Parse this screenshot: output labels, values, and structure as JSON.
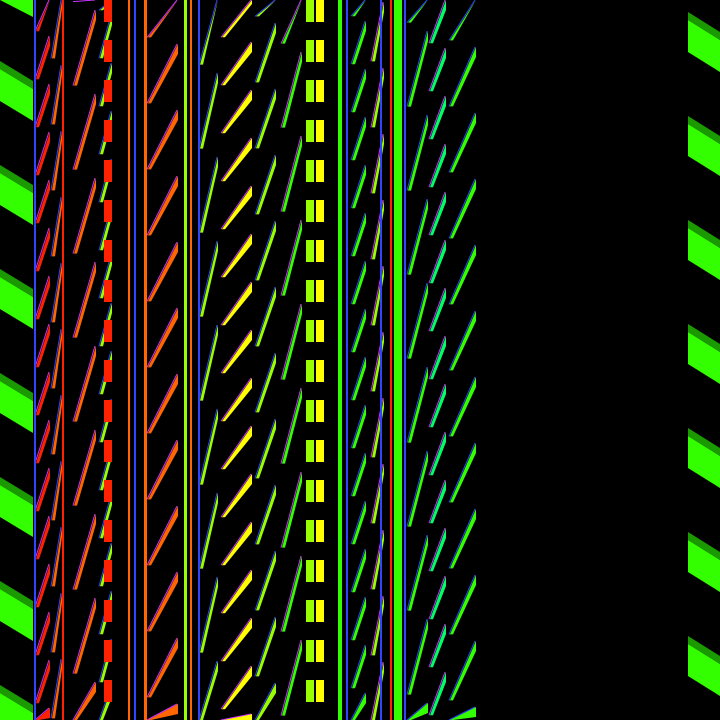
{
  "palette": {
    "background": "#000000",
    "green": "#33ff00",
    "dark_green": "#1a9900",
    "lime": "#99ff00",
    "yellow": "#ffff00",
    "orange": "#ff6600",
    "red": "#ff2200",
    "blue": "#3344ff",
    "magenta": "#cc33ff",
    "cyan": "#00ffcc",
    "mint": "#00ff66"
  }
}
